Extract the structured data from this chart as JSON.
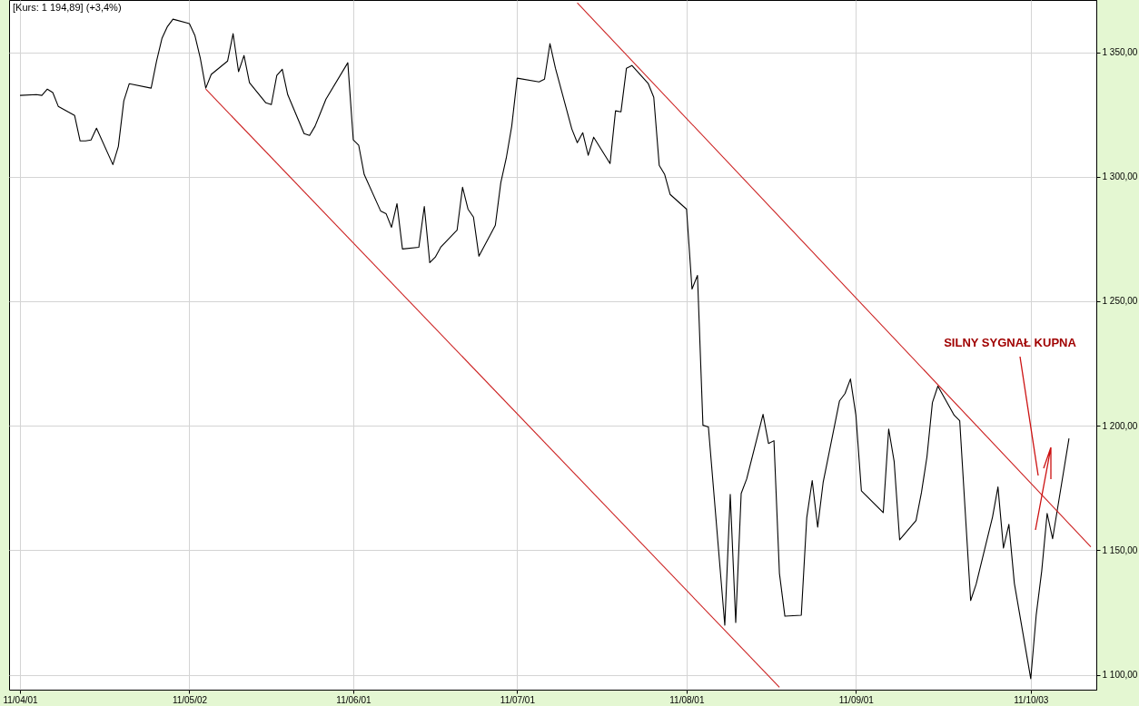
{
  "chart_data": {
    "type": "line",
    "title": "[Kurs: 1 194,89] (+3,4%)",
    "annotations": [
      "SILNY SYGNAŁ KUPNA"
    ],
    "x": [
      "--04-01",
      "--04-04",
      "--04-05",
      "--04-06",
      "--04-07",
      "--04-08",
      "--04-11",
      "--04-12",
      "--04-13",
      "--04-14",
      "--04-15",
      "--04-18",
      "--04-19",
      "--04-20",
      "--04-21",
      "--04-25",
      "--04-26",
      "--04-27",
      "--04-28",
      "--04-29",
      "--05-02",
      "--05-03",
      "--05-04",
      "--05-05",
      "--05-06",
      "--05-09",
      "--05-10",
      "--05-11",
      "--05-12",
      "--05-13",
      "--05-16",
      "--05-17",
      "--05-18",
      "--05-19",
      "--05-20",
      "--05-23",
      "--05-24",
      "--05-25",
      "--05-26",
      "--05-27",
      "--05-31",
      "--06-01",
      "--06-02",
      "--06-03",
      "--06-06",
      "--06-07",
      "--06-08",
      "--06-09",
      "--06-10",
      "--06-13",
      "--06-14",
      "--06-15",
      "--06-16",
      "--06-17",
      "--06-20",
      "--06-21",
      "--06-22",
      "--06-23",
      "--06-24",
      "--06-27",
      "--06-28",
      "--06-29",
      "--06-30",
      "--07-01",
      "--07-05",
      "--07-06",
      "--07-07",
      "--07-08",
      "--07-11",
      "--07-12",
      "--07-13",
      "--07-14",
      "--07-15",
      "--07-18",
      "--07-19",
      "--07-20",
      "--07-21",
      "--07-22",
      "--07-25",
      "--07-26",
      "--07-27",
      "--07-28",
      "--07-29",
      "--08-01",
      "--08-02",
      "--08-03",
      "--08-04",
      "--08-05",
      "--08-08",
      "--08-09",
      "--08-10",
      "--08-11",
      "--08-12",
      "--08-15",
      "--08-16",
      "--08-17",
      "--08-18",
      "--08-19",
      "--08-22",
      "--08-23",
      "--08-24",
      "--08-25",
      "--08-26",
      "--08-29",
      "--08-30",
      "--08-31",
      "--09-01",
      "--09-02",
      "--09-06",
      "--09-07",
      "--09-08",
      "--09-09",
      "--09-12",
      "--09-13",
      "--09-14",
      "--09-15",
      "--09-16",
      "--09-19",
      "--09-20",
      "--09-21",
      "--09-22",
      "--09-23",
      "--09-26",
      "--09-27",
      "--09-28",
      "--09-29",
      "--09-30",
      "--10-03",
      "--10-04",
      "--10-05",
      "--10-06",
      "--10-07",
      "--10-10"
    ],
    "series": [
      {
        "color": "#000000",
        "values": [
          1332.7,
          1333.0,
          1332.7,
          1335.2,
          1333.8,
          1328.3,
          1324.6,
          1314.4,
          1314.4,
          1314.8,
          1319.5,
          1304.9,
          1312.2,
          1330.5,
          1337.4,
          1335.6,
          1346.5,
          1355.7,
          1360.4,
          1363.3,
          1361.5,
          1356.8,
          1347.6,
          1335.6,
          1341.1,
          1346.5,
          1357.5,
          1342.2,
          1348.7,
          1337.8,
          1329.7,
          1329.0,
          1340.7,
          1343.2,
          1333.0,
          1317.3,
          1316.6,
          1320.3,
          1325.7,
          1331.2,
          1345.8,
          1314.8,
          1312.6,
          1300.9,
          1286.3,
          1285.2,
          1279.7,
          1289.2,
          1271.0,
          1271.7,
          1288.1,
          1265.5,
          1267.7,
          1271.7,
          1278.6,
          1295.8,
          1287.0,
          1283.8,
          1268.1,
          1280.5,
          1297.6,
          1307.5,
          1320.3,
          1339.6,
          1338.1,
          1339.2,
          1353.5,
          1343.6,
          1319.2,
          1313.7,
          1317.7,
          1308.6,
          1315.9,
          1305.3,
          1326.5,
          1326.1,
          1343.6,
          1344.7,
          1337.4,
          1331.9,
          1304.6,
          1300.9,
          1292.9,
          1287.0,
          1254.9,
          1260.4,
          1200.2,
          1199.5,
          1119.9,
          1172.4,
          1121.0,
          1172.8,
          1178.6,
          1204.6,
          1192.9,
          1194.0,
          1140.7,
          1123.5,
          1123.9,
          1163.0,
          1178.0,
          1159.3,
          1177.2,
          1210.0,
          1212.9,
          1218.8,
          1204.2,
          1173.9,
          1165.1,
          1198.7,
          1185.6,
          1154.2,
          1161.9,
          1173.2,
          1187.5,
          1209.3,
          1215.9,
          1204.2,
          1202.0,
          1165.8,
          1129.8,
          1136.3,
          1163.3,
          1175.4,
          1150.9,
          1160.4,
          1136.7,
          1098.4,
          1124.0,
          1141.5,
          1164.8,
          1154.6,
          1194.9
        ]
      },
      {
        "type": "line",
        "color": "#cc2222",
        "x": [
          "--07-12",
          "--10-14"
        ],
        "values": [
          1369.9,
          1151.4
        ]
      },
      {
        "type": "line",
        "color": "#cc2222",
        "x": [
          "--05-05",
          "--08-18"
        ],
        "values": [
          1335.2,
          1095
        ]
      }
    ],
    "xlim": [
      "--03-30",
      "--10-15"
    ],
    "xticks": [
      {
        "value": "--04-01",
        "label": "11/04/01"
      },
      {
        "value": "--05-02",
        "label": "11/05/02"
      },
      {
        "value": "--06-01",
        "label": "11/06/01"
      },
      {
        "value": "--07-01",
        "label": "11/07/01"
      },
      {
        "value": "--08-01",
        "label": "11/08/01"
      },
      {
        "value": "--09-01",
        "label": "11/09/01"
      },
      {
        "value": "--10-03",
        "label": "11/10/03"
      }
    ],
    "ylim": [
      1094,
      1371
    ],
    "yticks": [
      {
        "value": 1100,
        "label": "1 100,00"
      },
      {
        "value": 1150,
        "label": "1 150,00"
      },
      {
        "value": 1200,
        "label": "1 200,00"
      },
      {
        "value": 1250,
        "label": "1 250,00"
      },
      {
        "value": 1300,
        "label": "1 300,00"
      },
      {
        "value": 1350,
        "label": "1 350,00"
      }
    ],
    "grid": true
  }
}
